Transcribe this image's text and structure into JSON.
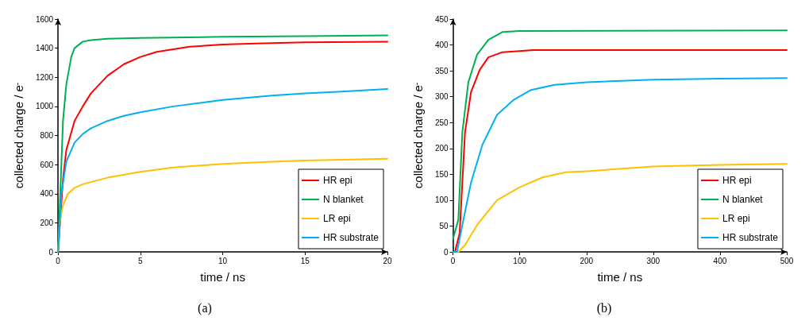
{
  "chart_data": [
    {
      "type": "line",
      "xlabel": "time / ns",
      "ylabel": "collected charge / e$^{-}$",
      "xlim": [
        0,
        20
      ],
      "xticks": [
        0,
        5,
        10,
        15,
        20
      ],
      "ylim": [
        0,
        1600
      ],
      "yticks": [
        0,
        200,
        400,
        600,
        800,
        1000,
        1200,
        1400,
        1600
      ],
      "grid": false,
      "legend": "bottom right",
      "marker": "none",
      "line_style": "solid",
      "annotations": [
        "(a)"
      ],
      "series": [
        {
          "name": "HR epi",
          "color": "#ff0000",
          "x": [
            0,
            0.3,
            0.5,
            1,
            1.5,
            2,
            3,
            4,
            5,
            6,
            8,
            10,
            12,
            15,
            20
          ],
          "values": [
            0,
            500,
            700,
            900,
            1000,
            1090,
            1210,
            1290,
            1340,
            1375,
            1410,
            1425,
            1432,
            1440,
            1445
          ]
        },
        {
          "name": "N blanket",
          "color": "#00b050",
          "x": [
            0,
            0.3,
            0.5,
            0.8,
            1,
            1.5,
            2,
            3,
            5,
            10,
            15,
            20
          ],
          "values": [
            0,
            900,
            1150,
            1340,
            1400,
            1445,
            1455,
            1465,
            1470,
            1478,
            1482,
            1488
          ]
        },
        {
          "name": "LR epi",
          "color": "#ffc000",
          "x": [
            0,
            0.1,
            0.3,
            0.6,
            1,
            1.5,
            2,
            3,
            5,
            7,
            10,
            13,
            15,
            20
          ],
          "values": [
            0,
            200,
            320,
            400,
            440,
            465,
            480,
            510,
            550,
            580,
            605,
            620,
            628,
            640
          ]
        },
        {
          "name": "HR substrate",
          "color": "#00b0f0",
          "x": [
            0,
            0.2,
            0.5,
            1,
            1.5,
            2,
            3,
            4,
            5,
            7,
            10,
            13,
            15,
            17,
            20
          ],
          "values": [
            0,
            400,
            620,
            750,
            810,
            850,
            900,
            935,
            960,
            1000,
            1045,
            1075,
            1090,
            1100,
            1120
          ]
        }
      ]
    },
    {
      "type": "line",
      "xlabel": "time / ns",
      "ylabel": "collected charge / e$^{-}$",
      "xlim": [
        0,
        500
      ],
      "xticks": [
        0,
        100,
        200,
        300,
        400,
        500
      ],
      "ylim": [
        0,
        450
      ],
      "yticks": [
        0,
        50,
        100,
        150,
        200,
        250,
        300,
        350,
        400,
        450
      ],
      "grid": false,
      "legend": "bottom right",
      "marker": "none",
      "line_style": "solid",
      "annotations": [
        "(b)"
      ],
      "series": [
        {
          "name": "HR epi",
          "color": "#ff0000",
          "x": [
            0,
            3,
            10,
            18,
            27,
            40,
            53,
            74,
            100,
            120,
            500
          ],
          "values": [
            0,
            0,
            37,
            231,
            309,
            352,
            376,
            386,
            388,
            390,
            390
          ]
        },
        {
          "name": "N blanket",
          "color": "#00b050",
          "x": [
            0,
            1,
            8,
            14,
            23,
            36,
            53,
            74,
            100,
            500
          ],
          "values": [
            25,
            30,
            62,
            231,
            328,
            381,
            410,
            425,
            427,
            428
          ]
        },
        {
          "name": "LR epi",
          "color": "#ffc000",
          "x": [
            0,
            8,
            18,
            36,
            66,
            100,
            134,
            169,
            200,
            300,
            400,
            500
          ],
          "values": [
            0,
            0,
            13,
            52,
            100,
            125,
            144,
            154,
            156,
            165,
            168,
            170
          ]
        },
        {
          "name": "HR substrate",
          "color": "#00b0f0",
          "x": [
            0,
            6,
            14,
            27,
            44,
            66,
            91,
            117,
            152,
            200,
            300,
            400,
            500
          ],
          "values": [
            0,
            0,
            52,
            134,
            207,
            265,
            294,
            313,
            323,
            328,
            333,
            335,
            336
          ]
        }
      ]
    }
  ]
}
